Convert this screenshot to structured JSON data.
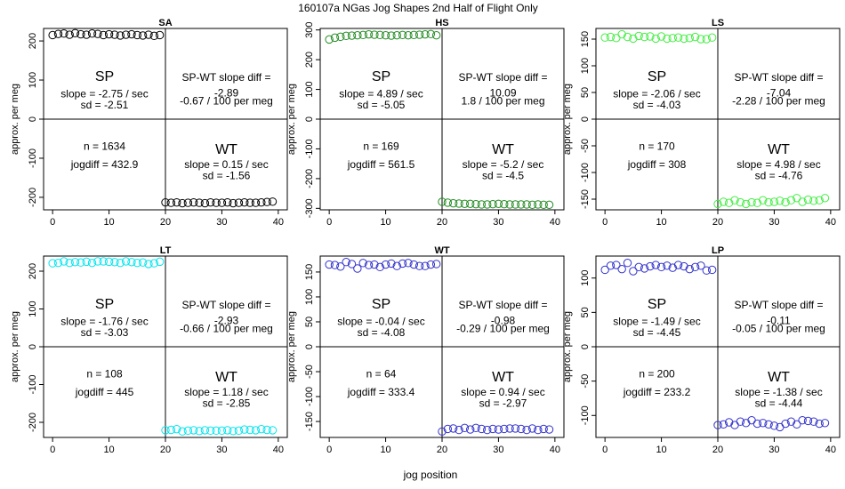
{
  "figure": {
    "title": "160107a    NGas Jog Shapes 2nd Half of Flight Only",
    "xlabel": "jog position",
    "ylabel": "approx. per meg"
  },
  "chart_data": [
    {
      "type": "scatter",
      "title": "SA",
      "color": "#000000",
      "xlim": [
        -1.6,
        41.6
      ],
      "ylim": [
        -232,
        232
      ],
      "xticks": [
        0,
        10,
        20,
        30,
        40
      ],
      "yticks": [
        -200,
        -100,
        0,
        100,
        200
      ],
      "sp": {
        "x": [
          0,
          1,
          2,
          3,
          4,
          5,
          6,
          7,
          8,
          9,
          10,
          11,
          12,
          13,
          14,
          15,
          16,
          17,
          18,
          19
        ],
        "y": [
          215,
          218,
          219,
          216,
          220,
          217,
          216,
          219,
          218,
          215,
          217,
          216,
          214,
          216,
          217,
          215,
          214,
          216,
          213,
          215
        ]
      },
      "wt": {
        "x": [
          20,
          21,
          22,
          23,
          24,
          25,
          26,
          27,
          28,
          29,
          30,
          31,
          32,
          33,
          34,
          35,
          36,
          37,
          38,
          39
        ],
        "y": [
          -213,
          -214,
          -213,
          -215,
          -214,
          -213,
          -214,
          -215,
          -213,
          -214,
          -214,
          -213,
          -215,
          -214,
          -213,
          -214,
          -214,
          -213,
          -212,
          -211
        ]
      },
      "annotations": {
        "sp_label": "SP",
        "sp_slope": "slope = -2.75 / sec",
        "sp_sd": "sd = -2.51",
        "diff_title": "SP-WT slope diff =",
        "diff_value": "-2.89",
        "diff_per": "-0.67 / 100 per meg",
        "n": "n = 1634",
        "jogdiff": "jogdiff = 432.9",
        "wt_label": "WT",
        "wt_slope": "slope = 0.15 / sec",
        "wt_sd": "sd = -1.56"
      }
    },
    {
      "type": "scatter",
      "title": "HS",
      "color": "#228B22",
      "xlim": [
        -1.6,
        41.6
      ],
      "ylim": [
        -305,
        305
      ],
      "xticks": [
        0,
        10,
        20,
        30,
        40
      ],
      "yticks": [
        -300,
        -200,
        -100,
        0,
        100,
        200,
        300
      ],
      "sp": {
        "x": [
          0,
          1,
          2,
          3,
          4,
          5,
          6,
          7,
          8,
          9,
          10,
          11,
          12,
          13,
          14,
          15,
          16,
          17,
          18,
          19
        ],
        "y": [
          268,
          274,
          277,
          280,
          281,
          282,
          283,
          285,
          284,
          283,
          282,
          281,
          282,
          283,
          282,
          283,
          284,
          285,
          286,
          282
        ]
      },
      "wt": {
        "x": [
          20,
          21,
          22,
          23,
          24,
          25,
          26,
          27,
          28,
          29,
          30,
          31,
          32,
          33,
          34,
          35,
          36,
          37,
          38,
          39
        ],
        "y": [
          -278,
          -281,
          -283,
          -284,
          -285,
          -285,
          -286,
          -287,
          -287,
          -286,
          -285,
          -286,
          -287,
          -287,
          -287,
          -287,
          -288,
          -287,
          -288,
          -288
        ]
      },
      "annotations": {
        "sp_label": "SP",
        "sp_slope": "slope = 4.89 / sec",
        "sp_sd": "sd = -5.05",
        "diff_title": "SP-WT slope diff =",
        "diff_value": "10.09",
        "diff_per": "1.8 / 100 per meg",
        "n": "n = 169",
        "jogdiff": "jogdiff = 561.5",
        "wt_label": "WT",
        "wt_slope": "slope = -5.2 / sec",
        "wt_sd": "sd = -4.5"
      }
    },
    {
      "type": "scatter",
      "title": "LS",
      "color": "#44EE44",
      "xlim": [
        -1.6,
        41.6
      ],
      "ylim": [
        -170,
        170
      ],
      "xticks": [
        0,
        10,
        20,
        30,
        40
      ],
      "yticks": [
        -150,
        -100,
        -50,
        0,
        50,
        100,
        150
      ],
      "sp": {
        "x": [
          0,
          1,
          2,
          3,
          4,
          5,
          6,
          7,
          8,
          9,
          10,
          11,
          12,
          13,
          14,
          15,
          16,
          17,
          18,
          19
        ],
        "y": [
          153,
          154,
          152,
          159,
          154,
          151,
          156,
          154,
          155,
          151,
          155,
          151,
          152,
          153,
          151,
          152,
          154,
          150,
          150,
          153
        ]
      },
      "wt": {
        "x": [
          20,
          21,
          22,
          23,
          24,
          25,
          26,
          27,
          28,
          29,
          30,
          31,
          32,
          33,
          34,
          35,
          36,
          37,
          38,
          39
        ],
        "y": [
          -159,
          -155,
          -157,
          -152,
          -156,
          -159,
          -156,
          -157,
          -152,
          -156,
          -155,
          -153,
          -156,
          -152,
          -148,
          -155,
          -151,
          -153,
          -152,
          -148
        ]
      },
      "annotations": {
        "sp_label": "SP",
        "sp_slope": "slope = -2.06 / sec",
        "sp_sd": "sd = -4.03",
        "diff_title": "SP-WT slope diff =",
        "diff_value": "-7.04",
        "diff_per": "-2.28 / 100 per meg",
        "n": "n = 170",
        "jogdiff": "jogdiff = 308",
        "wt_label": "WT",
        "wt_slope": "slope = 4.98 / sec",
        "wt_sd": "sd = -4.76"
      }
    },
    {
      "type": "scatter",
      "title": "LT",
      "color": "#00E5EE",
      "xlim": [
        -1.6,
        41.6
      ],
      "ylim": [
        -240,
        240
      ],
      "xticks": [
        0,
        10,
        20,
        30,
        40
      ],
      "yticks": [
        -200,
        -100,
        0,
        100,
        200
      ],
      "sp": {
        "x": [
          0,
          1,
          2,
          3,
          4,
          5,
          6,
          7,
          8,
          9,
          10,
          11,
          12,
          13,
          14,
          15,
          16,
          17,
          18,
          19
        ],
        "y": [
          221,
          222,
          226,
          222,
          224,
          223,
          225,
          222,
          226,
          226,
          225,
          224,
          222,
          226,
          224,
          222,
          223,
          219,
          221,
          225
        ]
      },
      "wt": {
        "x": [
          20,
          21,
          22,
          23,
          24,
          25,
          26,
          27,
          28,
          29,
          30,
          31,
          32,
          33,
          34,
          35,
          36,
          37,
          38,
          39
        ],
        "y": [
          -221,
          -220,
          -218,
          -224,
          -222,
          -221,
          -223,
          -221,
          -222,
          -222,
          -222,
          -221,
          -223,
          -222,
          -219,
          -220,
          -221,
          -218,
          -220,
          -221
        ]
      },
      "annotations": {
        "sp_label": "SP",
        "sp_slope": "slope = -1.76 / sec",
        "sp_sd": "sd = -3.03",
        "diff_title": "SP-WT slope diff =",
        "diff_value": "-2.93",
        "diff_per": "-0.66 / 100 per meg",
        "n": "n = 108",
        "jogdiff": "jogdiff = 445",
        "wt_label": "WT",
        "wt_slope": "slope = 1.18 / sec",
        "wt_sd": "sd = -2.85"
      }
    },
    {
      "type": "scatter",
      "title": "WT",
      "color": "#3333CC",
      "xlim": [
        -1.6,
        41.6
      ],
      "ylim": [
        -182,
        182
      ],
      "xticks": [
        0,
        10,
        20,
        30,
        40
      ],
      "yticks": [
        -150,
        -100,
        -50,
        0,
        50,
        100,
        150
      ],
      "sp": {
        "x": [
          0,
          1,
          2,
          3,
          4,
          5,
          6,
          7,
          8,
          9,
          10,
          11,
          12,
          13,
          14,
          15,
          16,
          17,
          18,
          19
        ],
        "y": [
          165,
          164,
          161,
          170,
          166,
          157,
          168,
          164,
          165,
          160,
          165,
          167,
          162,
          167,
          168,
          165,
          162,
          162,
          165,
          166
        ]
      },
      "wt": {
        "x": [
          20,
          21,
          22,
          23,
          24,
          25,
          26,
          27,
          28,
          29,
          30,
          31,
          32,
          33,
          34,
          35,
          36,
          37,
          38,
          39
        ],
        "y": [
          -170,
          -165,
          -164,
          -167,
          -163,
          -166,
          -163,
          -165,
          -167,
          -165,
          -166,
          -165,
          -164,
          -164,
          -165,
          -167,
          -164,
          -167,
          -165,
          -166
        ]
      },
      "annotations": {
        "sp_label": "SP",
        "sp_slope": "slope = -0.04 / sec",
        "sp_sd": "sd = -4.08",
        "diff_title": "SP-WT slope diff =",
        "diff_value": "-0.98",
        "diff_per": "-0.29 / 100 per meg",
        "n": "n = 64",
        "jogdiff": "jogdiff = 333.4",
        "wt_label": "WT",
        "wt_slope": "slope = 0.94 / sec",
        "wt_sd": "sd = -2.97"
      }
    },
    {
      "type": "scatter",
      "title": "LP",
      "color": "#3333CC",
      "xlim": [
        -1.6,
        41.6
      ],
      "ylim": [
        -132,
        132
      ],
      "xticks": [
        0,
        10,
        20,
        30,
        40
      ],
      "yticks": [
        -100,
        -50,
        0,
        50,
        100
      ],
      "sp": {
        "x": [
          0,
          1,
          2,
          3,
          4,
          5,
          6,
          7,
          8,
          9,
          10,
          11,
          12,
          13,
          14,
          15,
          16,
          17,
          18,
          19
        ],
        "y": [
          112,
          118,
          119,
          113,
          122,
          110,
          116,
          114,
          117,
          119,
          116,
          118,
          115,
          119,
          117,
          113,
          116,
          118,
          111,
          112
        ]
      },
      "wt": {
        "x": [
          20,
          21,
          22,
          23,
          24,
          25,
          26,
          27,
          28,
          29,
          30,
          31,
          32,
          33,
          34,
          35,
          36,
          37,
          38,
          39
        ],
        "y": [
          -114,
          -113,
          -110,
          -114,
          -109,
          -111,
          -107,
          -112,
          -111,
          -113,
          -115,
          -117,
          -112,
          -109,
          -113,
          -107,
          -108,
          -109,
          -112,
          -111
        ]
      },
      "annotations": {
        "sp_label": "SP",
        "sp_slope": "slope = -1.49 / sec",
        "sp_sd": "sd = -4.45",
        "diff_title": "SP-WT slope diff =",
        "diff_value": "-0.11",
        "diff_per": "-0.05 / 100 per meg",
        "n": "n = 200",
        "jogdiff": "jogdiff = 233.2",
        "wt_label": "WT",
        "wt_slope": "slope = -1.38 / sec",
        "wt_sd": "sd = -4.44"
      }
    }
  ]
}
